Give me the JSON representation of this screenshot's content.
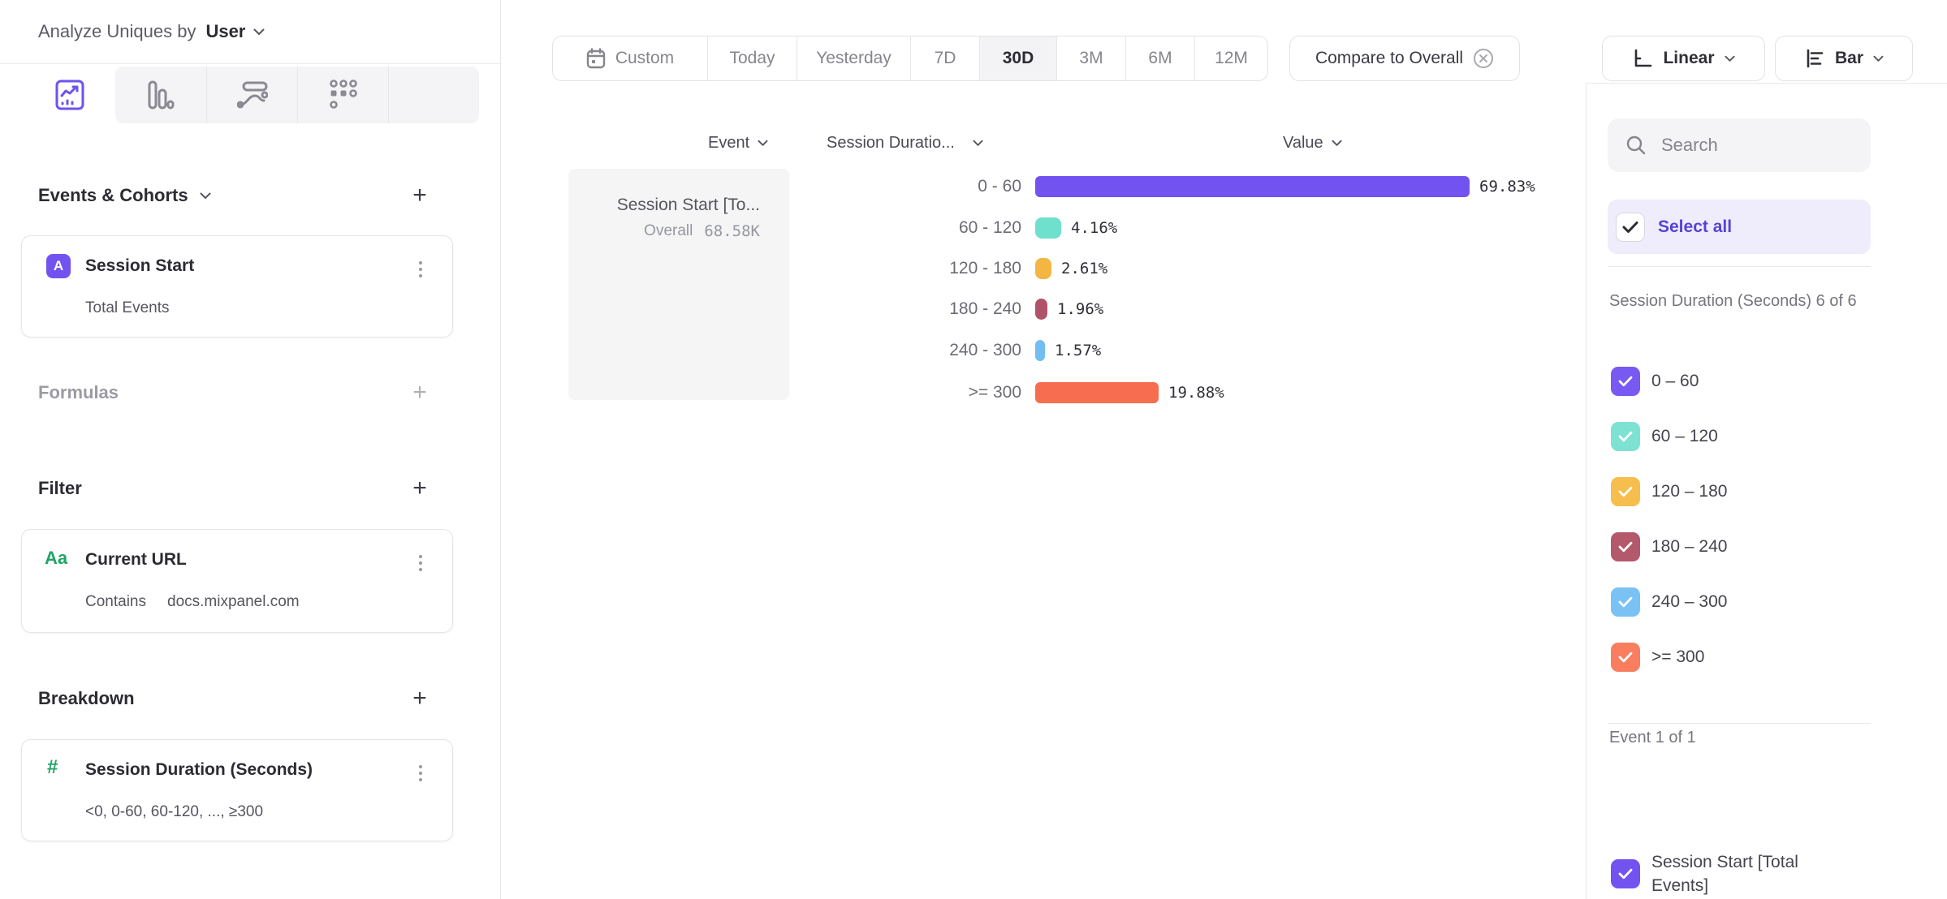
{
  "colors": {
    "accent_purple": "#7253f0",
    "select_all_bg": "#efecfb",
    "select_all_text": "#5443d6",
    "badge_green": "#1fa566",
    "panel_border": "#e8e8eb"
  },
  "sidebar": {
    "analyze_label": "Analyze Uniques by",
    "analyze_value": "User",
    "tabs": [
      {
        "name": "insights",
        "selected": true
      },
      {
        "name": "funnels",
        "selected": false
      },
      {
        "name": "flows",
        "selected": false
      },
      {
        "name": "retention",
        "selected": false
      }
    ],
    "events_section": {
      "title": "Events & Cohorts",
      "add_label": "+"
    },
    "event_card": {
      "badge": "A",
      "title": "Session Start",
      "subtitle": "Total Events"
    },
    "formulas_section": {
      "title": "Formulas",
      "add_label": "+"
    },
    "filter_section": {
      "title": "Filter",
      "add_label": "+"
    },
    "filter_card": {
      "badge": "Aa",
      "title": "Current URL",
      "operator": "Contains",
      "value": "docs.mixpanel.com"
    },
    "breakdown_section": {
      "title": "Breakdown",
      "add_label": "+"
    },
    "breakdown_card": {
      "badge": "#",
      "title": "Session Duration (Seconds)",
      "subtitle": "<0, 0-60, 60-120, ..., ≥300"
    }
  },
  "toolbar": {
    "date_ranges": [
      "Custom",
      "Today",
      "Yesterday",
      "7D",
      "30D",
      "3M",
      "6M",
      "12M"
    ],
    "selected_range": "30D",
    "compare_label": "Compare to Overall",
    "linear_label": "Linear",
    "bar_label": "Bar"
  },
  "table": {
    "event_header": "Event",
    "breakdown_header": "Session Duratio...",
    "value_header": "Value"
  },
  "event_cell": {
    "title": "Session Start [To...",
    "overall_label": "Overall",
    "overall_value": "68.58K"
  },
  "chart_data": {
    "type": "bar",
    "orientation": "horizontal",
    "categories": [
      "0 - 60",
      "60 - 120",
      "120 - 180",
      "180 - 240",
      "240 - 300",
      ">= 300"
    ],
    "values": [
      69.83,
      4.16,
      2.61,
      1.96,
      1.57,
      19.88
    ],
    "value_labels": [
      "69.83%",
      "4.16%",
      "2.61%",
      "1.96%",
      "1.57%",
      "19.88%"
    ],
    "colors": [
      "#7253f0",
      "#6fe0cd",
      "#f3b643",
      "#b05268",
      "#72bef2",
      "#f66e4f"
    ],
    "series_name": "Session Start [To...",
    "overall_value": "68.58K",
    "xlim": [
      0,
      100
    ],
    "unit": "%",
    "grid": false,
    "legend_position": "right-panel"
  },
  "right_panel": {
    "search_placeholder": "Search",
    "select_all_label": "Select all",
    "group_label": "Session Duration (Seconds) 6 of 6",
    "items": [
      {
        "label": "0 – 60",
        "color": "#7859f2",
        "checked": true
      },
      {
        "label": "60 – 120",
        "color": "#7ee2d2",
        "checked": true
      },
      {
        "label": "120 – 180",
        "color": "#f6be4d",
        "checked": true
      },
      {
        "label": "180 – 240",
        "color": "#b4586c",
        "checked": true
      },
      {
        "label": "240 – 300",
        "color": "#7ac2f4",
        "checked": true
      },
      {
        "label": ">= 300",
        "color": "#f97e60",
        "checked": true
      }
    ],
    "event_group_label": "Event 1 of 1",
    "event_item": {
      "label": "Session Start [Total Events]",
      "color": "#7253f0",
      "checked": true
    }
  }
}
